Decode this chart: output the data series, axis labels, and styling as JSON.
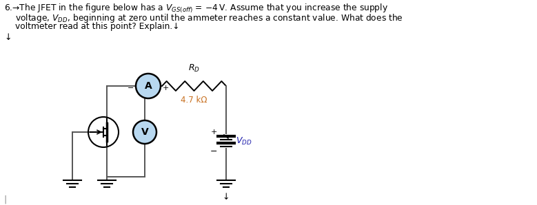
{
  "title_line1": "6.→The JFET in the figure below has a $V_{GS(off)}$ = −4 V. Assume that you increase the supply",
  "title_line2": "voltage, $V_{DD}$, beginning at zero until the ammeter reaches a constant value. What does the",
  "title_line3": "voltmeter read at this point? Explain.↓",
  "arrow_down": "↓",
  "rd_label": "$R_D$",
  "rd_value": "4.7 kΩ",
  "vdd_label": "$V_{DD}$",
  "ammeter_label": "A",
  "voltmeter_label": "V",
  "bg_color": "#ffffff",
  "circle_fill": "#b8d8f0",
  "circle_edge": "#000000",
  "ground_color": "#000000",
  "resistor_color": "#000000",
  "wire_color": "#555555",
  "text_color": "#000000",
  "rd_value_color": "#c87020",
  "vdd_color": "#1a1aaa"
}
